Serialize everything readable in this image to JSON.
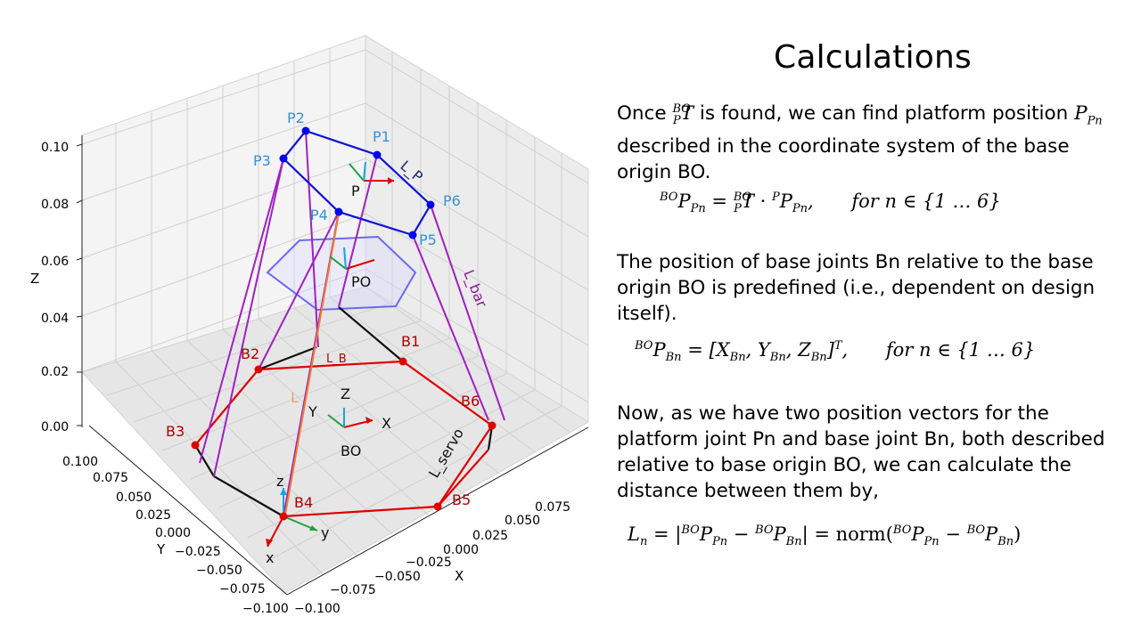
{
  "heading": "Calculations",
  "paragraphs": {
    "p1_a": "Once",
    "p1_symbol_T": "T",
    "p1_symbol_T_sup": "BO",
    "p1_symbol_T_sub": "P",
    "p1_b": "is found, we can find platform position",
    "p1_symbol_P": "P",
    "p1_symbol_P_sub": "Pn",
    "p1_c": "described in the coordinate system of the base origin BO.",
    "p2": "The position of base joints Bn relative to the base origin BO is predefined (i.e., dependent on design itself).",
    "p3": "Now, as we have two position vectors for the platform joint Pn and base joint Bn, both described relative to base origin BO, we can calculate the distance between them by,"
  },
  "equations": {
    "eq1_lhs_sup": "BO",
    "eq1_lhs": "P",
    "eq1_lhs_sub": "Pn",
    "eq1_eq": "=",
    "eq1_T_sup": "BO",
    "eq1_T_sub": "P",
    "eq1_T": "T",
    "eq1_dot": "·",
    "eq1_rhs_sup": "P",
    "eq1_rhs": "P",
    "eq1_rhs_sub": "Pn",
    "eq1_comma": ",",
    "eq1_for": "for n ∈ {1 … 6}",
    "eq2_lhs_sup": "BO",
    "eq2_lhs": "P",
    "eq2_lhs_sub": "Bn",
    "eq2_rhs": "= [X",
    "eq2_x_sub": "Bn",
    "eq2_y": ", Y",
    "eq2_y_sub": "Bn",
    "eq2_z": ", Z",
    "eq2_z_sub": "Bn",
    "eq2_close": "]",
    "eq2_T": "T",
    "eq2_comma": ",",
    "eq2_for": "for n ∈ {1 … 6}",
    "eq3_L": "L",
    "eq3_L_sub": "n",
    "eq3_a": "= |",
    "eq3_sup1": "BO",
    "eq3_P1": "P",
    "eq3_sub1": "Pn",
    "eq3_minus": " − ",
    "eq3_sup2": "BO",
    "eq3_P2": "P",
    "eq3_sub2": "Bn",
    "eq3_b": "| = norm(",
    "eq3_sup3": "BO",
    "eq3_P3": "P",
    "eq3_sub3": "Pn",
    "eq3_minus2": " − ",
    "eq3_sup4": "BO",
    "eq3_P4": "P",
    "eq3_sub4": "Bn",
    "eq3_c": ")"
  },
  "plot": {
    "z_axis_title": "Z",
    "y_axis_title": "Y",
    "x_axis_title": "X",
    "z_ticks": [
      "0.10",
      "0.08",
      "0.06",
      "0.04",
      "0.02",
      "0.00"
    ],
    "y_ticks": [
      "0.100",
      "0.075",
      "0.050",
      "0.025",
      "0.000",
      "−0.025",
      "−0.050",
      "−0.075",
      "−0.100"
    ],
    "x_ticks": [
      "−0.100",
      "−0.075",
      "−0.050",
      "−0.025",
      "0.000",
      "0.025",
      "0.050",
      "0.075"
    ],
    "platform_joints": [
      "P1",
      "P2",
      "P3",
      "P4",
      "P5",
      "P6"
    ],
    "base_joints": [
      "B1",
      "B2",
      "B3",
      "B4",
      "B5",
      "B6"
    ],
    "frame_labels": {
      "platform": "P",
      "platform_origin": "PO",
      "base_origin": "BO",
      "base_x": "X",
      "base_y": "Y",
      "base_z": "Z",
      "servo_x": "x",
      "servo_y": "y",
      "servo_z": "z"
    },
    "link_labels": {
      "l_p": "L_P",
      "l_bar": "L_bar",
      "l_b": "L_B",
      "l": "L",
      "l_servo": "L_servo"
    },
    "colors": {
      "platform": "#1010dd",
      "platform_label": "#3a8fd6",
      "base": "#e00000",
      "base_label": "#b00000",
      "legs": "#a020c0",
      "pane": "#f2f2f2",
      "grid": "#d0d0d0",
      "orange": "#f08030",
      "hexagon": "#6a6af0",
      "green": "#20a040",
      "cyan": "#1aa0e0"
    }
  }
}
